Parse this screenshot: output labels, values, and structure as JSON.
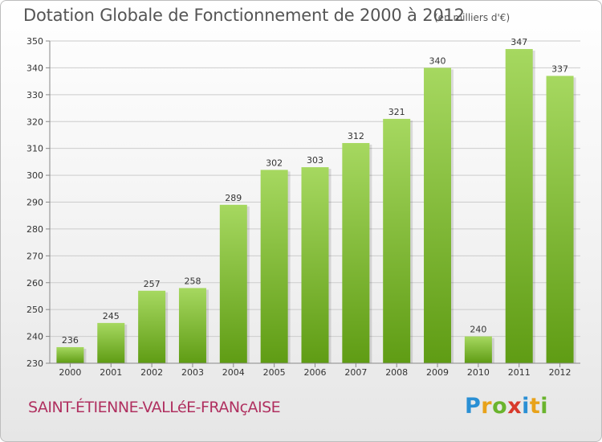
{
  "title": "Dotation Globale de Fonctionnement de 2000 à 2012",
  "subtitle": "(en milliers d'€)",
  "commune": "SAINT-ÉTIENNE-VALLéE-FRANçAISE",
  "logo": {
    "letters": [
      "P",
      "r",
      "o",
      "x",
      "i",
      "t",
      "i"
    ],
    "colors": [
      "#2a8fd4",
      "#e8a21a",
      "#6ab42d",
      "#d8392b",
      "#2a8fd4",
      "#e8a21a",
      "#6ab42d"
    ]
  },
  "colors": {
    "bar_light": "#a6d860",
    "bar_dark": "#5f9c14",
    "grid": "#cccccc"
  },
  "chart_data": {
    "type": "bar",
    "categories": [
      "2000",
      "2001",
      "2002",
      "2003",
      "2004",
      "2005",
      "2006",
      "2007",
      "2008",
      "2009",
      "2010",
      "2011",
      "2012"
    ],
    "values": [
      236,
      245,
      257,
      258,
      289,
      302,
      303,
      312,
      321,
      340,
      240,
      347,
      337
    ],
    "ylim": [
      230,
      350
    ],
    "yticks": [
      230,
      240,
      250,
      260,
      270,
      280,
      290,
      300,
      310,
      320,
      330,
      340,
      350
    ],
    "grid": true,
    "legend": "none"
  }
}
